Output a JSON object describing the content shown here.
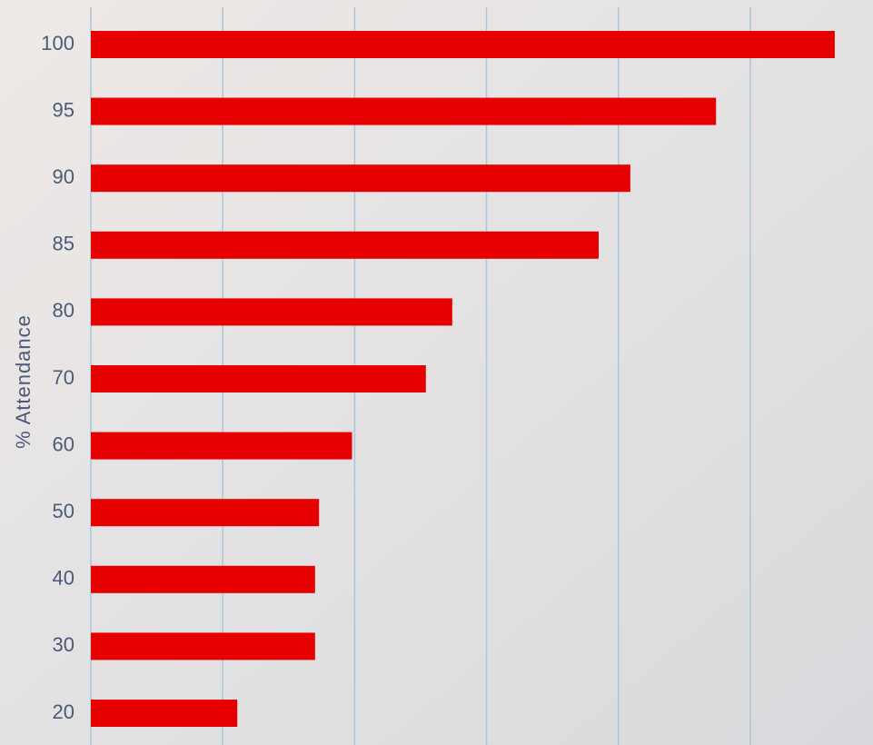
{
  "chart_data": {
    "type": "hbar",
    "y_label": "% Attendance",
    "categories": [
      "100",
      "95",
      "90",
      "85",
      "80",
      "70",
      "60",
      "50",
      "40",
      "30",
      "20"
    ],
    "values": [
      5.64,
      4.74,
      4.09,
      3.85,
      2.74,
      2.54,
      1.98,
      1.73,
      1.7,
      1.7,
      1.11
    ],
    "color": "#e60000",
    "xlim": [
      0,
      5.93
    ],
    "xticks": [
      0,
      1,
      2,
      3,
      4,
      5
    ],
    "grid": true
  }
}
